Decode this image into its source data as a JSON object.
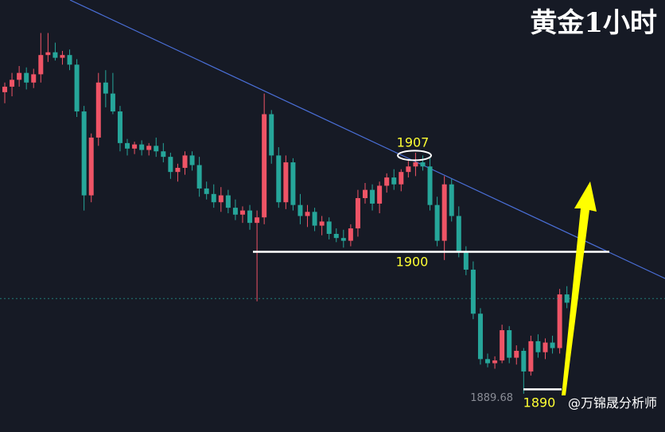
{
  "chart_data": {
    "type": "candlestick",
    "title": "黄金1小时",
    "watermark": "@万锦晟分析师",
    "up_color": "#ef5466",
    "down_color": "#26a69a",
    "ylim": [
      1886.9,
      1918.3
    ],
    "open": [
      1911.6,
      1912.0,
      1912.5,
      1913.0,
      1912.3,
      1912.9,
      1914.3,
      1914.5,
      1914.1,
      1914.3,
      1913.6,
      1910.2,
      1904.1,
      1908.3,
      1912.3,
      1911.5,
      1910.2,
      1907.9,
      1907.5,
      1907.8,
      1907.4,
      1907.7,
      1907.3,
      1906.9,
      1905.8,
      1906.1,
      1907.0,
      1906.3,
      1904.6,
      1904.2,
      1903.6,
      1904.1,
      1903.2,
      1902.7,
      1903.0,
      1902.1,
      1902.5,
      1910.0,
      1907.0,
      1903.6,
      1906.5,
      1903.4,
      1902.6,
      1902.9,
      1901.9,
      1902.2,
      1901.3,
      1901.0,
      1900.8,
      1901.7,
      1903.9,
      1904.5,
      1903.5,
      1904.8,
      1905.4,
      1904.9,
      1905.8,
      1906.2,
      1906.5,
      1906.2,
      1903.4,
      1900.8,
      1904.9,
      1902.6,
      1900.0,
      1898.7,
      1895.5,
      1892.2,
      1891.9,
      1892.1,
      1894.3,
      1892.3,
      1892.8,
      1891.3,
      1893.5,
      1892.7,
      1893.4,
      1893.0,
      1896.9,
      1896.3
    ],
    "high": [
      1912.3,
      1913.0,
      1913.5,
      1913.4,
      1913.3,
      1915.9,
      1915.9,
      1915.2,
      1914.6,
      1914.7,
      1914.0,
      1910.6,
      1908.6,
      1913.0,
      1913.2,
      1913.0,
      1910.6,
      1908.2,
      1908.0,
      1908.1,
      1907.9,
      1908.3,
      1907.9,
      1907.2,
      1906.4,
      1907.3,
      1907.3,
      1906.9,
      1905.1,
      1904.9,
      1904.7,
      1904.5,
      1903.8,
      1903.3,
      1903.4,
      1903.0,
      1911.5,
      1910.3,
      1907.6,
      1907.0,
      1906.8,
      1904.2,
      1903.4,
      1903.2,
      1902.6,
      1902.5,
      1901.7,
      1901.6,
      1902.0,
      1904.5,
      1905.0,
      1904.9,
      1905.1,
      1905.7,
      1906.0,
      1906.0,
      1906.6,
      1907.2,
      1907.0,
      1906.8,
      1904.0,
      1905.5,
      1905.3,
      1903.3,
      1900.4,
      1899.3,
      1895.9,
      1892.6,
      1892.4,
      1894.7,
      1894.6,
      1893.2,
      1893.0,
      1893.9,
      1894.0,
      1893.7,
      1893.9,
      1897.3,
      1897.5,
      1897.0
    ],
    "low": [
      1910.8,
      1911.3,
      1912.0,
      1911.8,
      1911.9,
      1912.3,
      1913.8,
      1913.9,
      1913.6,
      1913.2,
      1909.8,
      1903.0,
      1903.6,
      1907.7,
      1910.5,
      1910.0,
      1907.3,
      1907.0,
      1907.1,
      1907.0,
      1907.0,
      1906.9,
      1906.5,
      1905.3,
      1905.1,
      1905.6,
      1905.9,
      1904.0,
      1903.8,
      1903.2,
      1902.9,
      1902.8,
      1902.3,
      1902.1,
      1901.6,
      1896.4,
      1902.0,
      1906.4,
      1903.2,
      1903.1,
      1903.0,
      1902.0,
      1901.8,
      1901.5,
      1901.2,
      1900.9,
      1900.7,
      1900.3,
      1900.4,
      1901.1,
      1903.5,
      1903.0,
      1902.8,
      1904.3,
      1904.5,
      1904.4,
      1905.4,
      1905.5,
      1905.9,
      1903.0,
      1900.4,
      1899.4,
      1902.2,
      1899.6,
      1898.3,
      1895.1,
      1891.8,
      1891.6,
      1891.5,
      1891.9,
      1891.9,
      1891.8,
      1889.68,
      1891.0,
      1892.3,
      1892.2,
      1892.6,
      1892.6,
      1895.9,
      1895.6
    ],
    "close": [
      1912.0,
      1912.5,
      1913.0,
      1912.3,
      1912.9,
      1914.3,
      1914.5,
      1914.1,
      1914.3,
      1913.6,
      1910.2,
      1904.1,
      1908.3,
      1912.3,
      1911.5,
      1910.2,
      1907.9,
      1907.5,
      1907.8,
      1907.4,
      1907.7,
      1907.3,
      1906.9,
      1905.8,
      1906.1,
      1907.0,
      1906.3,
      1904.6,
      1904.2,
      1903.6,
      1904.1,
      1903.2,
      1902.7,
      1903.0,
      1902.1,
      1902.5,
      1910.0,
      1907.0,
      1903.6,
      1906.5,
      1903.4,
      1902.6,
      1902.9,
      1901.9,
      1902.2,
      1901.3,
      1901.0,
      1900.8,
      1901.7,
      1903.9,
      1904.5,
      1903.5,
      1904.8,
      1905.4,
      1904.9,
      1905.8,
      1906.2,
      1906.5,
      1906.2,
      1903.4,
      1900.8,
      1904.9,
      1902.6,
      1900.0,
      1898.7,
      1895.5,
      1892.2,
      1891.9,
      1892.1,
      1894.3,
      1892.3,
      1892.8,
      1891.3,
      1893.5,
      1892.7,
      1893.4,
      1893.0,
      1896.9,
      1896.3,
      1896.6
    ],
    "annotations": {
      "high_label": 1907,
      "resistance": 1900,
      "support": 1890,
      "low_price": 1889.68
    }
  }
}
